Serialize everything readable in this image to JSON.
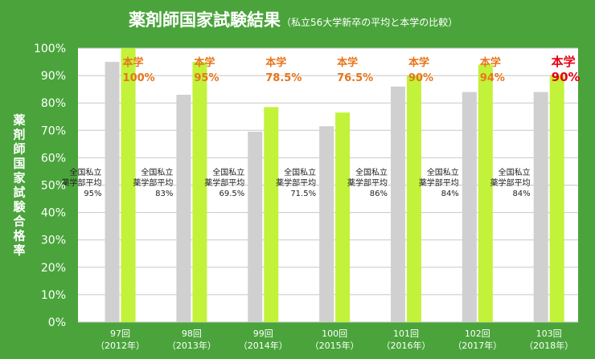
{
  "colors": {
    "background": "#4aa43b",
    "plot_area": "#ffffff",
    "gridline": "#c8c8c8",
    "private_bar": "#d0d0d0",
    "school_bar": "#c2f23a",
    "school_label": "#e8751a",
    "school_label_highlight": "#e60012"
  },
  "chart_data": {
    "type": "bar",
    "title": "薬剤師国家試験結果",
    "subtitle": "（私立56大学新卒の平均と本学の比較）",
    "xlabel": "",
    "ylabel": "薬剤師国家試験合格率",
    "ylim": [
      0,
      100
    ],
    "yticks": [
      "0%",
      "10%",
      "20%",
      "30%",
      "40%",
      "50%",
      "60%",
      "70%",
      "80%",
      "90%",
      "100%"
    ],
    "grid": true,
    "categories": [
      [
        "97回",
        "（2012年）"
      ],
      [
        "98回",
        "（2013年）"
      ],
      [
        "99回",
        "（2014年）"
      ],
      [
        "100回",
        "（2015年）"
      ],
      [
        "101回",
        "（2016年）"
      ],
      [
        "102回",
        "（2017年）"
      ],
      [
        "103回",
        "（2018年）"
      ]
    ],
    "series": [
      {
        "name": "全国私立薬学部平均",
        "values": [
          95,
          83,
          69.5,
          71.5,
          86,
          84,
          84
        ],
        "label_lines": [
          "全国私立",
          "薬学部平均"
        ],
        "value_labels": [
          "95%",
          "83%",
          "69.5%",
          "71.5%",
          "86%",
          "84%",
          "84%"
        ]
      },
      {
        "name": "本学",
        "values": [
          100,
          95,
          78.5,
          76.5,
          90,
          94,
          90
        ],
        "value_labels": [
          "100%",
          "95%",
          "78.5%",
          "76.5%",
          "90%",
          "94%",
          "90%"
        ]
      }
    ],
    "highlight_index": 6
  }
}
